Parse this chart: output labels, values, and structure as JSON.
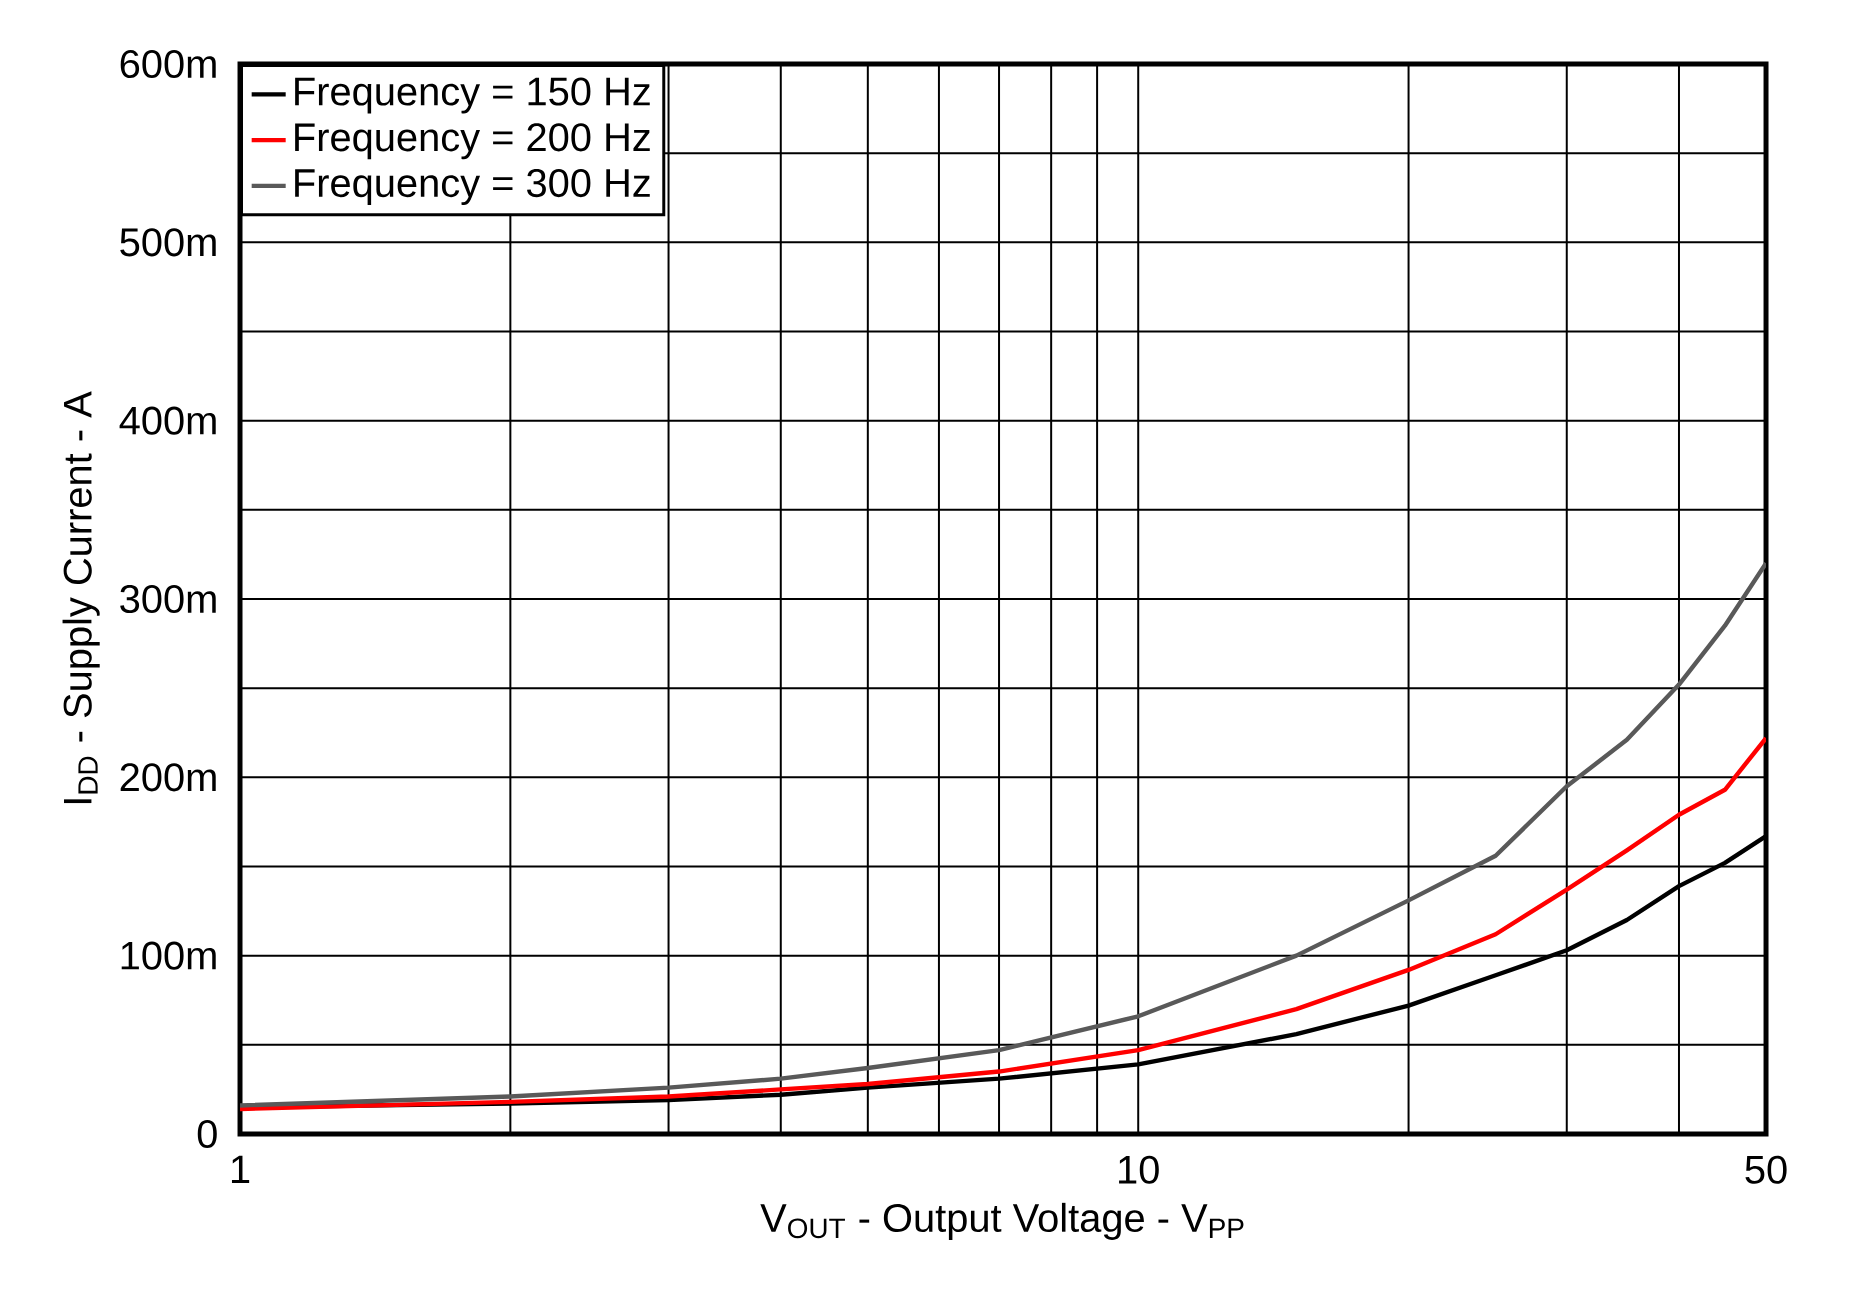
{
  "chart_data": {
    "type": "line",
    "xlabel": "V$_{OUT}$ - Output Voltage - V$_{PP}$",
    "ylabel": "I$_{DD}$ - Supply Current - A",
    "log": "x",
    "grid": true,
    "legend": "top left",
    "marker": "none",
    "line_style": "solid",
    "xlim": [
      1,
      50
    ],
    "ylim": [
      0,
      600
    ],
    "xticks": [
      1,
      {
        "value": 2,
        "label": null
      },
      {
        "value": 3,
        "label": null
      },
      {
        "value": 4,
        "label": null
      },
      {
        "value": 5,
        "label": null
      },
      {
        "value": 6,
        "label": null
      },
      {
        "value": 7,
        "label": null
      },
      {
        "value": 8,
        "label": null
      },
      {
        "value": 9,
        "label": null
      },
      10,
      {
        "value": 20,
        "label": null
      },
      {
        "value": 30,
        "label": null
      },
      {
        "value": 40,
        "label": null
      },
      50
    ],
    "yticks": [
      0,
      {
        "value": 50,
        "label": null
      },
      {
        "value": 100,
        "label": "100m"
      },
      {
        "value": 150,
        "label": null
      },
      {
        "value": 200,
        "label": "200m"
      },
      {
        "value": 250,
        "label": null
      },
      {
        "value": 300,
        "label": "300m"
      },
      {
        "value": 350,
        "label": null
      },
      {
        "value": 400,
        "label": "400m"
      },
      {
        "value": 450,
        "label": null
      },
      {
        "value": 500,
        "label": "500m"
      },
      {
        "value": 550,
        "label": null
      },
      {
        "value": 600,
        "label": "600m"
      }
    ],
    "x": [
      1,
      2,
      3,
      4,
      5,
      7,
      10,
      15,
      20,
      25,
      30,
      35,
      40,
      45,
      50
    ],
    "series": [
      {
        "name": "Frequency = 150 Hz",
        "color": "#000000",
        "values": [
          15,
          17,
          19,
          22,
          26,
          31,
          39,
          56,
          72,
          89,
          103,
          120,
          139,
          152,
          167
        ]
      },
      {
        "name": "Frequency = 200 Hz",
        "color": "#ff0000",
        "values": [
          14,
          18,
          21,
          25,
          28,
          35,
          47,
          70,
          92,
          112,
          137,
          159,
          179,
          193,
          222
        ]
      },
      {
        "name": "Frequency = 300 Hz",
        "color": "#595959",
        "values": [
          16,
          21,
          26,
          31,
          37,
          47,
          66,
          100,
          131,
          156,
          195,
          221,
          252,
          285,
          320
        ]
      }
    ]
  }
}
